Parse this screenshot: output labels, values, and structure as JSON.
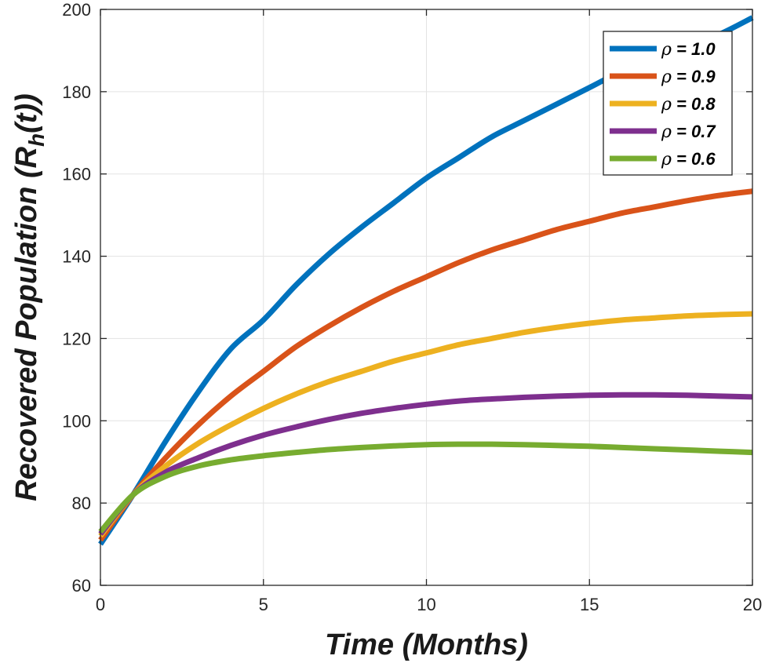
{
  "chart_data": {
    "type": "line",
    "title": "",
    "xlabel": "Time (Months)",
    "ylabel": {
      "prefix": "Recovered Population (R",
      "sub": "h",
      "suffix": "(t))"
    },
    "xlim": [
      0,
      20
    ],
    "ylim": [
      60,
      200
    ],
    "xticks": [
      0,
      5,
      10,
      15,
      20
    ],
    "yticks": [
      60,
      80,
      100,
      120,
      140,
      160,
      180,
      200
    ],
    "grid": true,
    "legend_position": "top-right",
    "x": [
      0,
      1,
      2,
      3,
      4,
      5,
      6,
      7,
      8,
      9,
      10,
      11,
      12,
      13,
      14,
      15,
      16,
      17,
      18,
      19,
      20
    ],
    "series": [
      {
        "name": "ρ = 1.0",
        "rho": "ρ",
        "value_label": " = 1.0",
        "color": "#0072BD",
        "values": [
          70,
          82,
          95,
          107,
          117.5,
          124.5,
          133,
          140.5,
          147,
          153,
          159,
          164,
          169,
          173,
          177,
          181,
          185,
          188,
          191,
          194,
          198
        ]
      },
      {
        "name": "ρ = 0.9",
        "rho": "ρ",
        "value_label": " = 0.9",
        "color": "#D95319",
        "values": [
          71,
          82,
          91,
          99,
          106,
          112,
          118,
          123,
          127.5,
          131.5,
          135,
          138.5,
          141.5,
          144,
          146.5,
          148.5,
          150.5,
          152,
          153.5,
          154.8,
          155.8
        ]
      },
      {
        "name": "ρ = 0.8",
        "rho": "ρ",
        "value_label": " = 0.8",
        "color": "#EDB120",
        "values": [
          72,
          82,
          89,
          94.5,
          99,
          103,
          106.5,
          109.5,
          112,
          114.5,
          116.5,
          118.5,
          120,
          121.5,
          122.7,
          123.7,
          124.5,
          125,
          125.5,
          125.8,
          126
        ]
      },
      {
        "name": "ρ = 0.7",
        "rho": "ρ",
        "value_label": " = 0.7",
        "color": "#7E2F8E",
        "values": [
          72.5,
          82,
          87.5,
          91,
          94,
          96.5,
          98.5,
          100.3,
          101.8,
          103,
          104,
          104.8,
          105.3,
          105.7,
          106,
          106.2,
          106.3,
          106.3,
          106.2,
          106,
          105.8
        ]
      },
      {
        "name": "ρ = 0.6",
        "rho": "ρ",
        "value_label": " = 0.6",
        "color": "#77AC30",
        "values": [
          73,
          82,
          86.5,
          89,
          90.5,
          91.5,
          92.3,
          93,
          93.5,
          93.9,
          94.2,
          94.3,
          94.3,
          94.2,
          94,
          93.8,
          93.5,
          93.2,
          92.9,
          92.6,
          92.3
        ]
      }
    ]
  }
}
